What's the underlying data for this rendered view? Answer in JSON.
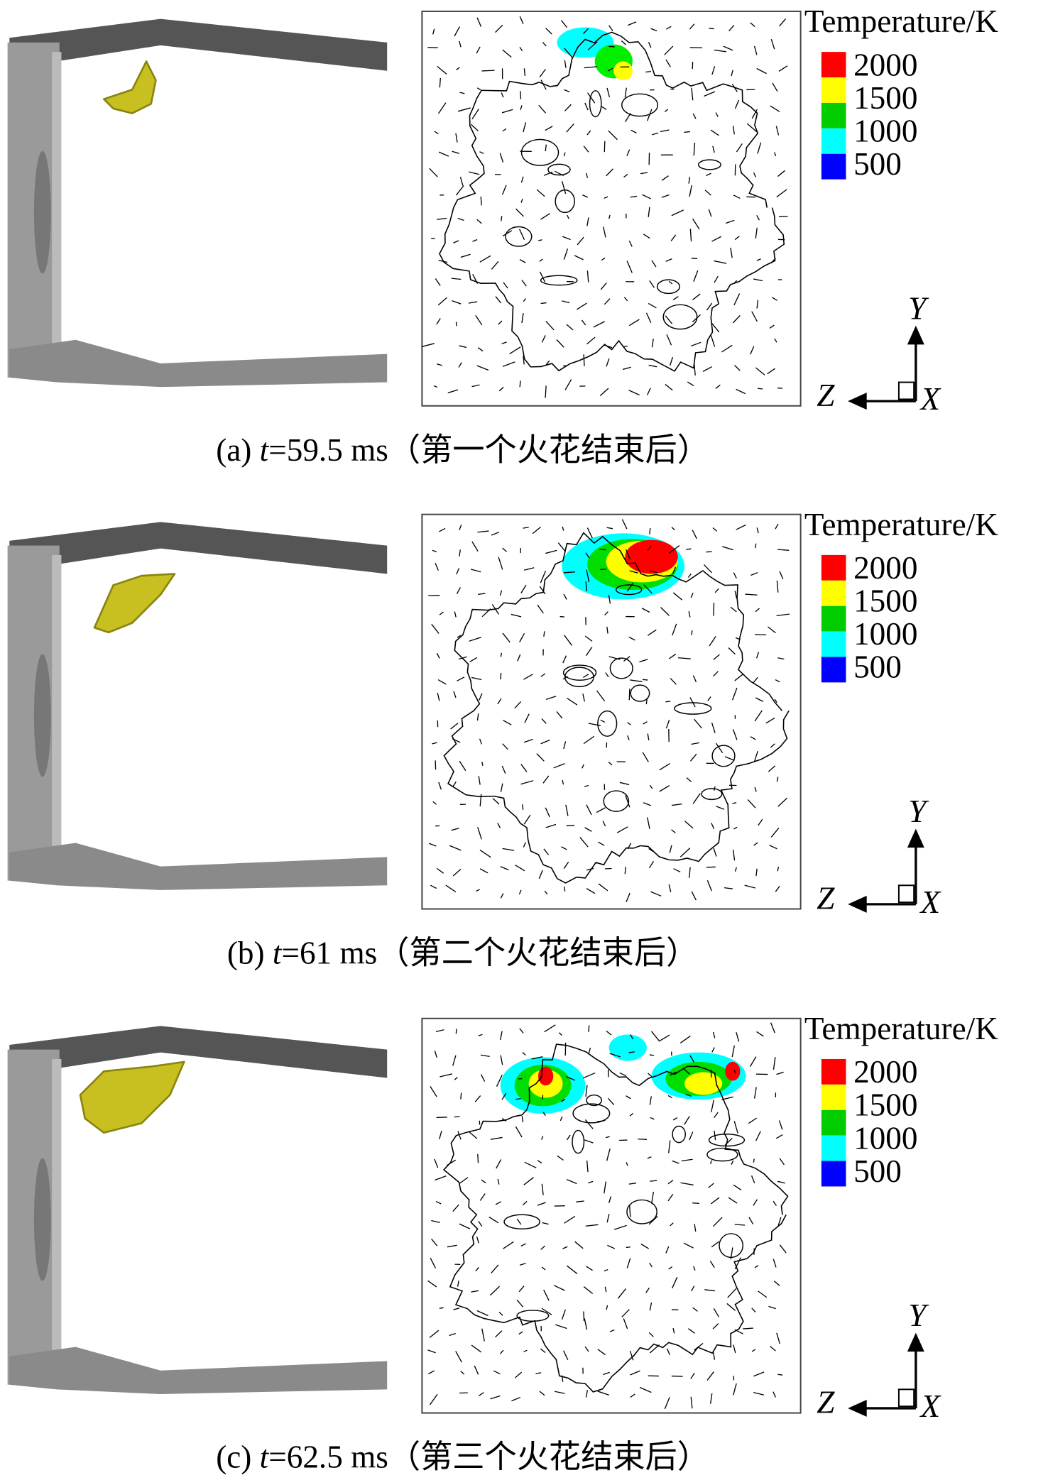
{
  "panels": [
    {
      "caption": {
        "prefix": "(a) ",
        "var": "t",
        "rest": "=59.5 ms（第一个火花结束后）"
      }
    },
    {
      "caption": {
        "prefix": "(b) ",
        "var": "t",
        "rest": "=61 ms（第二个火花结束后）"
      }
    },
    {
      "caption": {
        "prefix": "(c) ",
        "var": "t",
        "rest": "=62.5 ms（第三个火花结束后）"
      }
    }
  ],
  "legend": {
    "title": "Temperature/K",
    "levels": [
      "2000",
      "1500",
      "1000",
      "500"
    ]
  },
  "axes": {
    "y": "Y",
    "z": "Z",
    "x": "X"
  }
}
